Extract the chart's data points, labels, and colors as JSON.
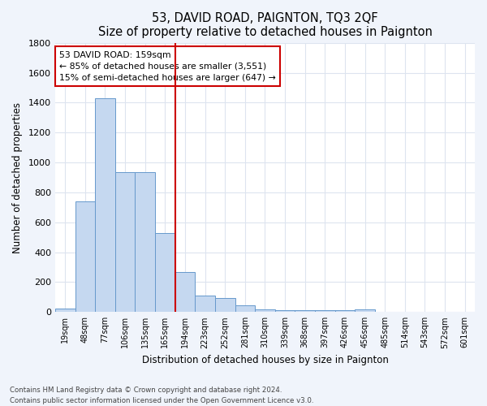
{
  "title1": "53, DAVID ROAD, PAIGNTON, TQ3 2QF",
  "title2": "Size of property relative to detached houses in Paignton",
  "xlabel": "Distribution of detached houses by size in Paignton",
  "ylabel": "Number of detached properties",
  "bin_labels": [
    "19sqm",
    "48sqm",
    "77sqm",
    "106sqm",
    "135sqm",
    "165sqm",
    "194sqm",
    "223sqm",
    "252sqm",
    "281sqm",
    "310sqm",
    "339sqm",
    "368sqm",
    "397sqm",
    "426sqm",
    "456sqm",
    "485sqm",
    "514sqm",
    "543sqm",
    "572sqm",
    "601sqm"
  ],
  "bar_values": [
    25,
    738,
    1430,
    935,
    935,
    530,
    270,
    110,
    95,
    43,
    20,
    15,
    15,
    15,
    15,
    20,
    0,
    0,
    0,
    0,
    0
  ],
  "bar_color": "#c5d8f0",
  "bar_edge_color": "#6699cc",
  "vline_x_index": 5,
  "vline_color": "#cc0000",
  "annotation_line1": "53 DAVID ROAD: 159sqm",
  "annotation_line2": "← 85% of detached houses are smaller (3,551)",
  "annotation_line3": "15% of semi-detached houses are larger (647) →",
  "annotation_box_color": "#ffffff",
  "annotation_box_edge": "#cc0000",
  "ylim": [
    0,
    1800
  ],
  "yticks": [
    0,
    200,
    400,
    600,
    800,
    1000,
    1200,
    1400,
    1600,
    1800
  ],
  "footer": "Contains HM Land Registry data © Crown copyright and database right 2024.\nContains public sector information licensed under the Open Government Licence v3.0.",
  "fig_bg_color": "#f0f4fb",
  "plot_bg_color": "#ffffff",
  "title1_fontsize": 12,
  "title2_fontsize": 10,
  "grid_color": "#dde4ef"
}
